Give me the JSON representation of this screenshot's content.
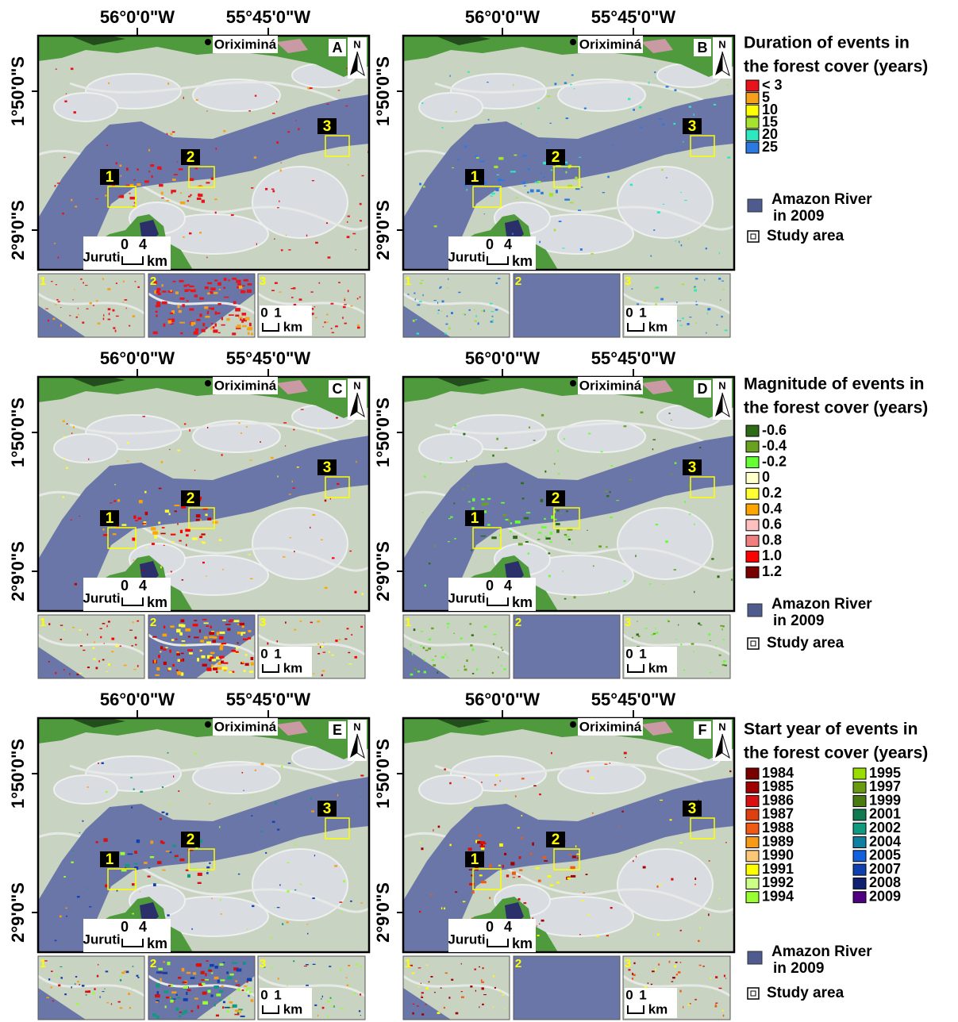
{
  "coordinates": {
    "lon": [
      "56°0'0\"W",
      "55°45'0\"W"
    ],
    "lat": [
      "1°50'0\"S",
      "2°9'0\"S"
    ]
  },
  "places": [
    "Oriximiná",
    "Juruti"
  ],
  "north": "N",
  "scale_main": {
    "ticks": [
      "0",
      "4"
    ],
    "unit": "km"
  },
  "scale_inset": {
    "ticks": [
      "0",
      "1"
    ],
    "unit": "km"
  },
  "study_boxes": [
    "1",
    "2",
    "3"
  ],
  "panels": [
    {
      "letter": "A"
    },
    {
      "letter": "B"
    },
    {
      "letter": "C"
    },
    {
      "letter": "D"
    },
    {
      "letter": "E"
    },
    {
      "letter": "F"
    }
  ],
  "legends": [
    {
      "title": [
        "Duration of events in",
        "the forest cover (years)"
      ],
      "items": [
        {
          "label": "< 3",
          "color": "#e8141b"
        },
        {
          "label": "5",
          "color": "#f7a11a"
        },
        {
          "label": "10",
          "color": "#ffff00"
        },
        {
          "label": "15",
          "color": "#a6e22e"
        },
        {
          "label": "20",
          "color": "#2ee8c0"
        },
        {
          "label": "25",
          "color": "#2a7ae2"
        }
      ]
    },
    {
      "title": [
        "Magnitude of events in",
        "the forest cover (years)"
      ],
      "items": [
        {
          "label": "-0.6",
          "color": "#2d6b16"
        },
        {
          "label": "-0.4",
          "color": "#6aa121"
        },
        {
          "label": "-0.2",
          "color": "#66ff33"
        },
        {
          "label": "0",
          "color": "#ffffcc"
        },
        {
          "label": "0.2",
          "color": "#ffff33"
        },
        {
          "label": "0.4",
          "color": "#ffa500"
        },
        {
          "label": "0.6",
          "color": "#ffc0c0"
        },
        {
          "label": "0.8",
          "color": "#f08080"
        },
        {
          "label": "1.0",
          "color": "#ff0000"
        },
        {
          "label": "1.2",
          "color": "#7a0000"
        }
      ]
    },
    {
      "title": [
        "Start year of events in",
        "the forest cover (years)"
      ],
      "items": [
        {
          "label": "1984",
          "color": "#7a0000"
        },
        {
          "label": "1985",
          "color": "#a00000"
        },
        {
          "label": "1986",
          "color": "#d81010"
        },
        {
          "label": "1987",
          "color": "#e04010"
        },
        {
          "label": "1988",
          "color": "#f05a14"
        },
        {
          "label": "1989",
          "color": "#f79a1a"
        },
        {
          "label": "1990",
          "color": "#fcc878"
        },
        {
          "label": "1991",
          "color": "#ffff00"
        },
        {
          "label": "1992",
          "color": "#ccff88"
        },
        {
          "label": "1994",
          "color": "#99ff33"
        },
        {
          "label": "1995",
          "color": "#99dd00"
        },
        {
          "label": "1997",
          "color": "#6a9a10"
        },
        {
          "label": "1999",
          "color": "#4a7a10"
        },
        {
          "label": "2001",
          "color": "#107a50"
        },
        {
          "label": "2002",
          "color": "#109a80"
        },
        {
          "label": "2004",
          "color": "#1080a0"
        },
        {
          "label": "2005",
          "color": "#1060e0"
        },
        {
          "label": "2007",
          "color": "#1040b0"
        },
        {
          "label": "2008",
          "color": "#102070"
        },
        {
          "label": "2009",
          "color": "#500080"
        }
      ]
    }
  ],
  "river_label": [
    "Amazon River",
    "in 2009"
  ],
  "study_area_label": "Study area"
}
